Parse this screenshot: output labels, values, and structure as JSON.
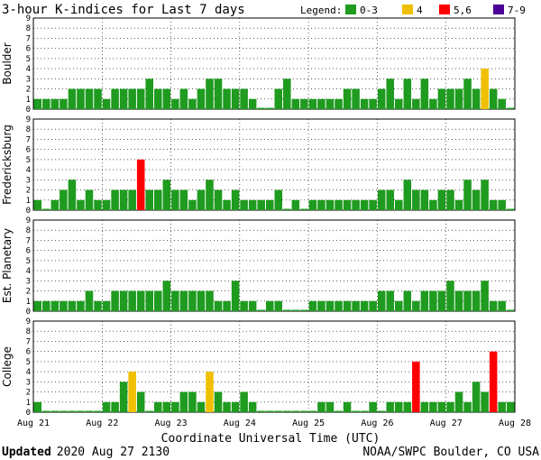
{
  "header": {
    "title": "3-hour K-indices for Last 7 days",
    "legend_label": "Legend:",
    "legend": [
      {
        "label": "0-3",
        "color": "#1f9b1f"
      },
      {
        "label": "4",
        "color": "#f0c000"
      },
      {
        "label": "5,6",
        "color": "#ff0000"
      },
      {
        "label": "7-9",
        "color": "#4b0096"
      }
    ]
  },
  "footer": {
    "updated_label": "Updated",
    "updated_time": "2020 Aug 27 2130",
    "credit": "NOAA/SWPC Boulder, CO USA"
  },
  "chart_data": {
    "type": "bar",
    "x_ticks": [
      "Aug 21",
      "Aug 22",
      "Aug 23",
      "Aug 24",
      "Aug 25",
      "Aug 26",
      "Aug 27",
      "Aug 28"
    ],
    "xlabel": "Coordinate Universal Time (UTC)",
    "ylim": [
      0,
      9
    ],
    "y_ticks": [
      0,
      1,
      2,
      3,
      4,
      5,
      6,
      7,
      8,
      9
    ],
    "bars_per_day": 8,
    "color_scale": {
      "0-3": "#1f9b1f",
      "4": "#f0c000",
      "5,6": "#ff0000",
      "7-9": "#4b0096"
    },
    "panels": [
      {
        "name": "Boulder",
        "values": [
          1,
          1,
          1,
          1,
          2,
          2,
          2,
          2,
          1,
          2,
          2,
          2,
          2,
          3,
          2,
          2,
          1,
          2,
          1,
          2,
          3,
          3,
          2,
          2,
          2,
          1,
          0,
          0,
          2,
          3,
          1,
          1,
          1,
          1,
          1,
          1,
          2,
          2,
          1,
          1,
          2,
          3,
          1,
          3,
          1,
          3,
          1,
          2,
          2,
          2,
          3,
          2,
          4,
          2,
          1,
          0
        ]
      },
      {
        "name": "Fredericksburg",
        "values": [
          1,
          0,
          1,
          2,
          3,
          1,
          2,
          1,
          1,
          2,
          2,
          2,
          5,
          2,
          2,
          3,
          2,
          2,
          1,
          2,
          3,
          2,
          1,
          2,
          1,
          1,
          1,
          1,
          2,
          0,
          1,
          0,
          1,
          1,
          1,
          1,
          1,
          1,
          1,
          1,
          2,
          2,
          1,
          3,
          2,
          2,
          1,
          2,
          2,
          1,
          3,
          2,
          3,
          1,
          1,
          0
        ]
      },
      {
        "name": "Est. Planetary",
        "values": [
          1,
          1,
          1,
          1,
          1,
          1,
          2,
          1,
          1,
          2,
          2,
          2,
          2,
          2,
          2,
          3,
          2,
          2,
          2,
          2,
          2,
          1,
          1,
          3,
          1,
          1,
          0,
          1,
          1,
          0,
          0,
          0,
          1,
          1,
          1,
          1,
          1,
          1,
          1,
          1,
          2,
          2,
          1,
          2,
          1,
          2,
          2,
          2,
          3,
          2,
          2,
          2,
          3,
          1,
          1,
          0
        ]
      },
      {
        "name": "College",
        "values": [
          1,
          0,
          0,
          0,
          0,
          0,
          0,
          0,
          1,
          1,
          3,
          4,
          2,
          0,
          1,
          1,
          1,
          2,
          2,
          1,
          4,
          2,
          1,
          1,
          2,
          1,
          0,
          0,
          0,
          0,
          0,
          0,
          0,
          1,
          1,
          0,
          1,
          0,
          0,
          1,
          0,
          1,
          1,
          1,
          5,
          1,
          1,
          1,
          1,
          2,
          1,
          3,
          2,
          6,
          1,
          1
        ]
      }
    ]
  }
}
